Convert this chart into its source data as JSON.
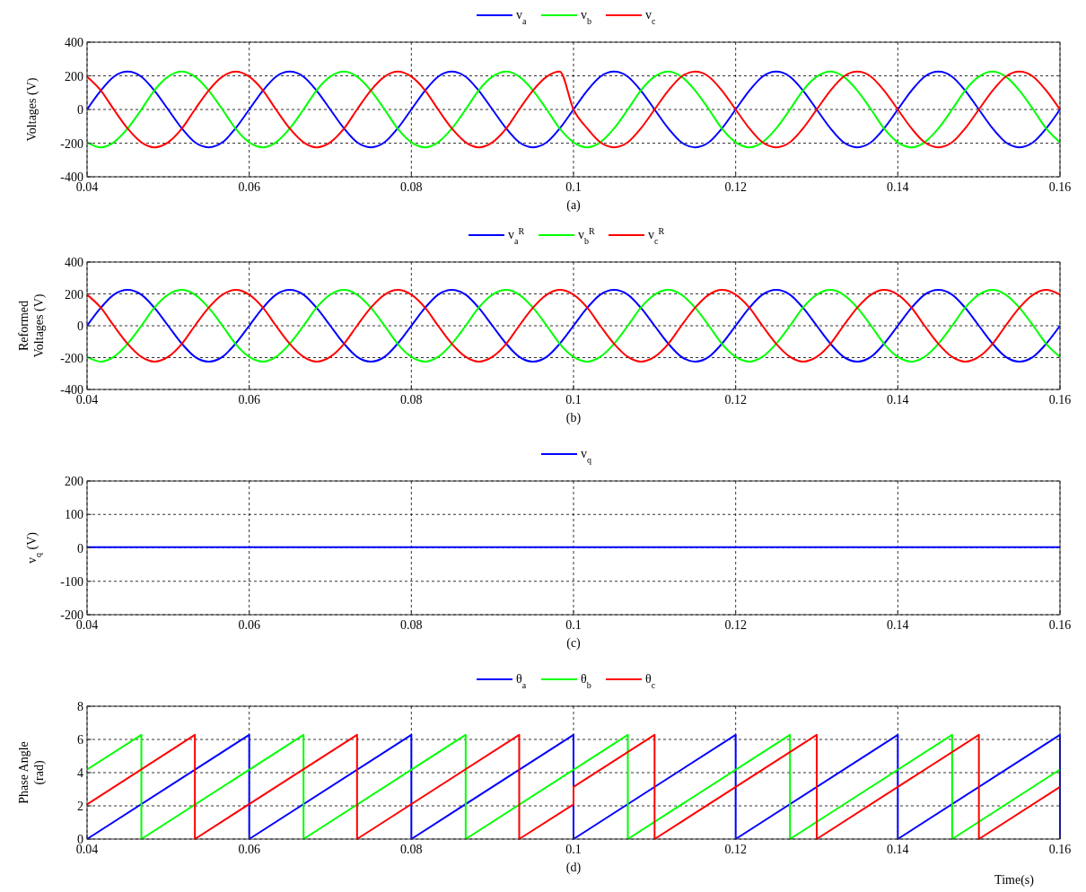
{
  "chart_data": [
    {
      "type": "line",
      "title": "(a)",
      "ylabel": "Voltages (V)",
      "xlim": [
        0.04,
        0.16
      ],
      "ylim": [
        -400,
        400
      ],
      "xticks": [
        0.04,
        0.06,
        0.08,
        0.1,
        0.12,
        0.14,
        0.16
      ],
      "yticks": [
        -400,
        -200,
        0,
        200,
        400
      ],
      "grid": true,
      "legend": "top",
      "line_style": "solid",
      "x": [
        0.04,
        0.0417,
        0.0433,
        0.045,
        0.0467,
        0.0483,
        0.05,
        0.0517,
        0.0533,
        0.055,
        0.0567,
        0.0583,
        0.06,
        0.0617,
        0.0633,
        0.065,
        0.0667,
        0.0683,
        0.07,
        0.0717,
        0.0733,
        0.075,
        0.0767,
        0.0783,
        0.08,
        0.0817,
        0.0833,
        0.085,
        0.0867,
        0.0883,
        0.09,
        0.0917,
        0.0933,
        0.095,
        0.0967,
        0.0983,
        0.1,
        0.1017,
        0.1033,
        0.105,
        0.1067,
        0.1083,
        0.11,
        0.1117,
        0.1133,
        0.115,
        0.1167,
        0.1183,
        0.12,
        0.1217,
        0.1233,
        0.125,
        0.1267,
        0.1283,
        0.13,
        0.1317,
        0.1333,
        0.135,
        0.1367,
        0.1383,
        0.14,
        0.1417,
        0.1433,
        0.145,
        0.1467,
        0.1483,
        0.15,
        0.1517,
        0.1533,
        0.155,
        0.1567,
        0.1583,
        0.16
      ],
      "series": [
        {
          "name": "v$_{a}$",
          "color": "#0000ff",
          "values": [
            0,
            113,
            195,
            225,
            195,
            113,
            0,
            -113,
            -195,
            -225,
            -195,
            -113,
            0,
            113,
            195,
            225,
            195,
            113,
            0,
            -113,
            -195,
            -225,
            -195,
            -113,
            0,
            113,
            195,
            225,
            195,
            113,
            0,
            -113,
            -195,
            -225,
            -195,
            -113,
            0,
            113,
            195,
            225,
            195,
            113,
            0,
            -113,
            -195,
            -225,
            -195,
            -113,
            0,
            113,
            195,
            225,
            195,
            113,
            0,
            -113,
            -195,
            -225,
            -195,
            -113,
            0,
            113,
            195,
            225,
            195,
            113,
            0,
            -113,
            -195,
            -225,
            -195,
            -113,
            0
          ]
        },
        {
          "name": "v$_{b}$",
          "color": "#00ff00",
          "values": [
            -195,
            -225,
            -195,
            -113,
            0,
            113,
            195,
            225,
            195,
            113,
            0,
            -113,
            -195,
            -225,
            -195,
            -113,
            0,
            113,
            195,
            225,
            195,
            113,
            0,
            -113,
            -195,
            -225,
            -195,
            -113,
            0,
            113,
            195,
            225,
            195,
            113,
            0,
            -113,
            -195,
            -225,
            -195,
            -113,
            0,
            113,
            195,
            225,
            195,
            113,
            0,
            -113,
            -195,
            -225,
            -195,
            -113,
            0,
            113,
            195,
            225,
            195,
            113,
            0,
            -113,
            -195,
            -225,
            -195,
            -113,
            0,
            113,
            195,
            225,
            195,
            113,
            0,
            -113,
            -195
          ]
        },
        {
          "name": "v$_{c}$",
          "color": "#ff0000",
          "values": [
            195,
            113,
            0,
            -113,
            -195,
            -225,
            -195,
            -113,
            0,
            113,
            195,
            225,
            195,
            113,
            0,
            -113,
            -195,
            -225,
            -195,
            -113,
            0,
            113,
            195,
            225,
            195,
            113,
            0,
            -113,
            -195,
            -225,
            -195,
            -113,
            0,
            113,
            195,
            225,
            0,
            -113,
            -195,
            -225,
            -195,
            -113,
            0,
            113,
            195,
            225,
            195,
            113,
            0,
            -113,
            -195,
            -225,
            -195,
            -113,
            0,
            113,
            195,
            225,
            195,
            113,
            0,
            -113,
            -195,
            -225,
            -195,
            -113,
            0,
            113,
            195,
            225,
            195,
            113,
            0
          ]
        }
      ]
    },
    {
      "type": "line",
      "title": "(b)",
      "ylabel": "Reformed\nVoltages (V)",
      "xlim": [
        0.04,
        0.16
      ],
      "ylim": [
        -400,
        400
      ],
      "xticks": [
        0.04,
        0.06,
        0.08,
        0.1,
        0.12,
        0.14,
        0.16
      ],
      "yticks": [
        -400,
        -200,
        0,
        200,
        400
      ],
      "grid": true,
      "legend": "top",
      "line_style": "solid",
      "x": [
        0.04,
        0.0417,
        0.0433,
        0.045,
        0.0467,
        0.0483,
        0.05,
        0.0517,
        0.0533,
        0.055,
        0.0567,
        0.0583,
        0.06,
        0.0617,
        0.0633,
        0.065,
        0.0667,
        0.0683,
        0.07,
        0.0717,
        0.0733,
        0.075,
        0.0767,
        0.0783,
        0.08,
        0.0817,
        0.0833,
        0.085,
        0.0867,
        0.0883,
        0.09,
        0.0917,
        0.0933,
        0.095,
        0.0967,
        0.0983,
        0.1,
        0.1017,
        0.1033,
        0.105,
        0.1067,
        0.1083,
        0.11,
        0.1117,
        0.1133,
        0.115,
        0.1167,
        0.1183,
        0.12,
        0.1217,
        0.1233,
        0.125,
        0.1267,
        0.1283,
        0.13,
        0.1317,
        0.1333,
        0.135,
        0.1367,
        0.1383,
        0.14,
        0.1417,
        0.1433,
        0.145,
        0.1467,
        0.1483,
        0.15,
        0.1517,
        0.1533,
        0.155,
        0.1567,
        0.1583,
        0.16
      ],
      "series": [
        {
          "name": "v$_{a}$$^{R}$",
          "color": "#0000ff",
          "values": [
            0,
            113,
            195,
            225,
            195,
            113,
            0,
            -113,
            -195,
            -225,
            -195,
            -113,
            0,
            113,
            195,
            225,
            195,
            113,
            0,
            -113,
            -195,
            -225,
            -195,
            -113,
            0,
            113,
            195,
            225,
            195,
            113,
            0,
            -113,
            -195,
            -225,
            -195,
            -113,
            0,
            113,
            195,
            225,
            195,
            113,
            0,
            -113,
            -195,
            -225,
            -195,
            -113,
            0,
            113,
            195,
            225,
            195,
            113,
            0,
            -113,
            -195,
            -225,
            -195,
            -113,
            0,
            113,
            195,
            225,
            195,
            113,
            0,
            -113,
            -195,
            -225,
            -195,
            -113,
            0
          ]
        },
        {
          "name": "v$_{b}$$^{R}$",
          "color": "#00ff00",
          "values": [
            -195,
            -225,
            -195,
            -113,
            0,
            113,
            195,
            225,
            195,
            113,
            0,
            -113,
            -195,
            -225,
            -195,
            -113,
            0,
            113,
            195,
            225,
            195,
            113,
            0,
            -113,
            -195,
            -225,
            -195,
            -113,
            0,
            113,
            195,
            225,
            195,
            113,
            0,
            -113,
            -195,
            -225,
            -195,
            -113,
            0,
            113,
            195,
            225,
            195,
            113,
            0,
            -113,
            -195,
            -225,
            -195,
            -113,
            0,
            113,
            195,
            225,
            195,
            113,
            0,
            -113,
            -195,
            -225,
            -195,
            -113,
            0,
            113,
            195,
            225,
            195,
            113,
            0,
            -113,
            -195
          ]
        },
        {
          "name": "v$_{c}$$^{R}$",
          "color": "#ff0000",
          "values": [
            195,
            113,
            0,
            -113,
            -195,
            -225,
            -195,
            -113,
            0,
            113,
            195,
            225,
            195,
            113,
            0,
            -113,
            -195,
            -225,
            -195,
            -113,
            0,
            113,
            195,
            225,
            195,
            113,
            0,
            -113,
            -195,
            -225,
            -195,
            -113,
            0,
            113,
            195,
            225,
            195,
            113,
            0,
            -113,
            -195,
            -225,
            -195,
            -113,
            0,
            113,
            195,
            225,
            195,
            113,
            0,
            -113,
            -195,
            -225,
            -195,
            -113,
            0,
            113,
            195,
            225,
            195,
            113,
            0,
            -113,
            -195,
            -225,
            -195,
            -113,
            0,
            113,
            195,
            225,
            195
          ]
        }
      ]
    },
    {
      "type": "line",
      "title": "(c)",
      "ylabel": "v$_{q}$ (V)",
      "xlim": [
        0.04,
        0.16
      ],
      "ylim": [
        -200,
        200
      ],
      "xticks": [
        0.04,
        0.06,
        0.08,
        0.1,
        0.12,
        0.14,
        0.16
      ],
      "yticks": [
        -200,
        -100,
        0,
        100,
        200
      ],
      "grid": true,
      "legend": "top",
      "line_style": "solid",
      "x": [
        0.04,
        0.06,
        0.08,
        0.1,
        0.12,
        0.14,
        0.16
      ],
      "series": [
        {
          "name": "v$_{q}$",
          "color": "#0000ff",
          "values": [
            2,
            2,
            2,
            2,
            2,
            2,
            2
          ]
        }
      ]
    },
    {
      "type": "line",
      "title": "(d)",
      "xlabel": "Time(s)",
      "ylabel": "Phase Angle\n(rad)",
      "xlim": [
        0.04,
        0.16
      ],
      "ylim": [
        0,
        8
      ],
      "xticks": [
        0.04,
        0.06,
        0.08,
        0.1,
        0.12,
        0.14,
        0.16
      ],
      "yticks": [
        0,
        2,
        4,
        6,
        8
      ],
      "grid": true,
      "legend": "top",
      "line_style": "solid",
      "series": [
        {
          "name": "θ$_{a}$",
          "color": "#0000ff",
          "x": [
            0.04,
            0.06,
            0.06,
            0.08,
            0.08,
            0.1,
            0.1,
            0.12,
            0.12,
            0.14,
            0.14,
            0.16,
            0.16
          ],
          "values": [
            0,
            6.28,
            0,
            6.28,
            0,
            6.28,
            0,
            6.28,
            0,
            6.28,
            0,
            6.28,
            0
          ]
        },
        {
          "name": "θ$_{b}$",
          "color": "#00ff00",
          "x": [
            0.04,
            0.0467,
            0.0467,
            0.0667,
            0.0667,
            0.0867,
            0.0867,
            0.1067,
            0.1067,
            0.1267,
            0.1267,
            0.1467,
            0.1467,
            0.16
          ],
          "values": [
            4.19,
            6.28,
            0,
            6.28,
            0,
            6.28,
            0,
            6.28,
            0,
            6.28,
            0,
            6.28,
            0,
            4.19
          ]
        },
        {
          "name": "θ$_{c}$",
          "color": "#ff0000",
          "x": [
            0.04,
            0.0533,
            0.0533,
            0.0733,
            0.0733,
            0.0933,
            0.0933,
            0.1,
            0.1,
            0.11,
            0.11,
            0.13,
            0.13,
            0.15,
            0.15,
            0.16
          ],
          "values": [
            2.09,
            6.28,
            0,
            6.28,
            0,
            6.28,
            0,
            2.09,
            3.14,
            6.28,
            0,
            6.28,
            0,
            6.28,
            0,
            3.14
          ]
        }
      ]
    }
  ]
}
